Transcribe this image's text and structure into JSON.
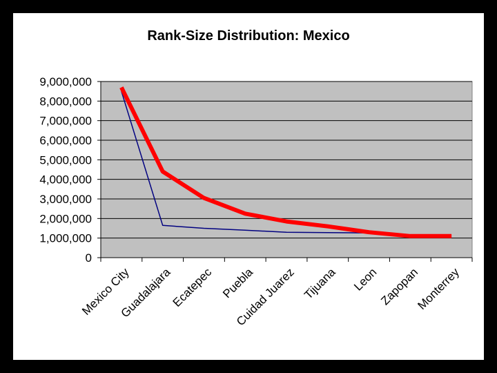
{
  "chart_data": {
    "type": "line",
    "title": "Rank-Size Distribution: Mexico",
    "xlabel": "",
    "ylabel": "",
    "categories": [
      "Mexico City",
      "Guadalajara",
      "Ecatepec",
      "Puebla",
      "Cuidad Juarez",
      "Tijuana",
      "Leon",
      "Zapopan",
      "Monterrey"
    ],
    "yticks": [
      "0",
      "1,000,000",
      "2,000,000",
      "3,000,000",
      "4,000,000",
      "5,000,000",
      "6,000,000",
      "7,000,000",
      "8,000,000",
      "9,000,000"
    ],
    "ylim": [
      0,
      9000000
    ],
    "grid": true,
    "legend": "none",
    "plot_background": "#c0c0c0",
    "series": [
      {
        "color": "#000080",
        "values": [
          8500000,
          1650000,
          1500000,
          1400000,
          1300000,
          1280000,
          1260000,
          1100000,
          1100000
        ]
      },
      {
        "color": "#ff0000",
        "values": [
          8700000,
          4400000,
          3050000,
          2250000,
          1850000,
          1600000,
          1300000,
          1100000,
          1100000
        ]
      }
    ]
  }
}
